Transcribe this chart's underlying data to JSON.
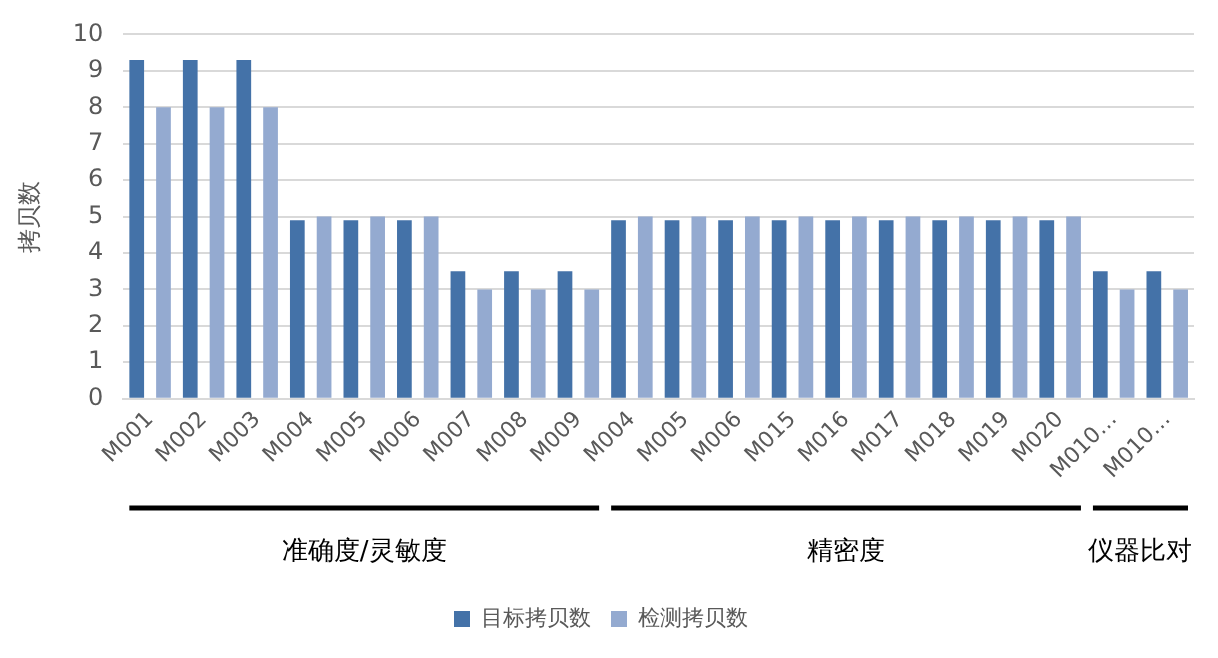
{
  "chart_data": {
    "type": "bar",
    "ylabel": "拷贝数",
    "categories": [
      "M001",
      "M002",
      "M003",
      "M004",
      "M005",
      "M006",
      "M007",
      "M008",
      "M009",
      "M004",
      "M005",
      "M006",
      "M015",
      "M016",
      "M017",
      "M018",
      "M019",
      "M020",
      "M010…",
      "M010…"
    ],
    "series": [
      {
        "name": "目标拷贝数",
        "color": "#4472a8",
        "values": [
          9.3,
          9.3,
          9.3,
          4.9,
          4.9,
          4.9,
          3.5,
          3.5,
          3.5,
          4.9,
          4.9,
          4.9,
          4.9,
          4.9,
          4.9,
          4.9,
          4.9,
          4.9,
          3.5,
          3.5
        ]
      },
      {
        "name": "检测拷贝数",
        "color": "#94aad0",
        "values": [
          8,
          8,
          8,
          5,
          5,
          5,
          3,
          3,
          3,
          5,
          5,
          5,
          5,
          5,
          5,
          5,
          5,
          5,
          3,
          3
        ]
      }
    ],
    "annotations": [
      "准确度/灵敏度",
      "精密度",
      "仪器比对"
    ],
    "ylim": [
      0,
      10
    ],
    "yticks": [
      0,
      1,
      2,
      3,
      4,
      5,
      6,
      7,
      8,
      9,
      10
    ],
    "grid": "y",
    "legend": "bottom"
  }
}
